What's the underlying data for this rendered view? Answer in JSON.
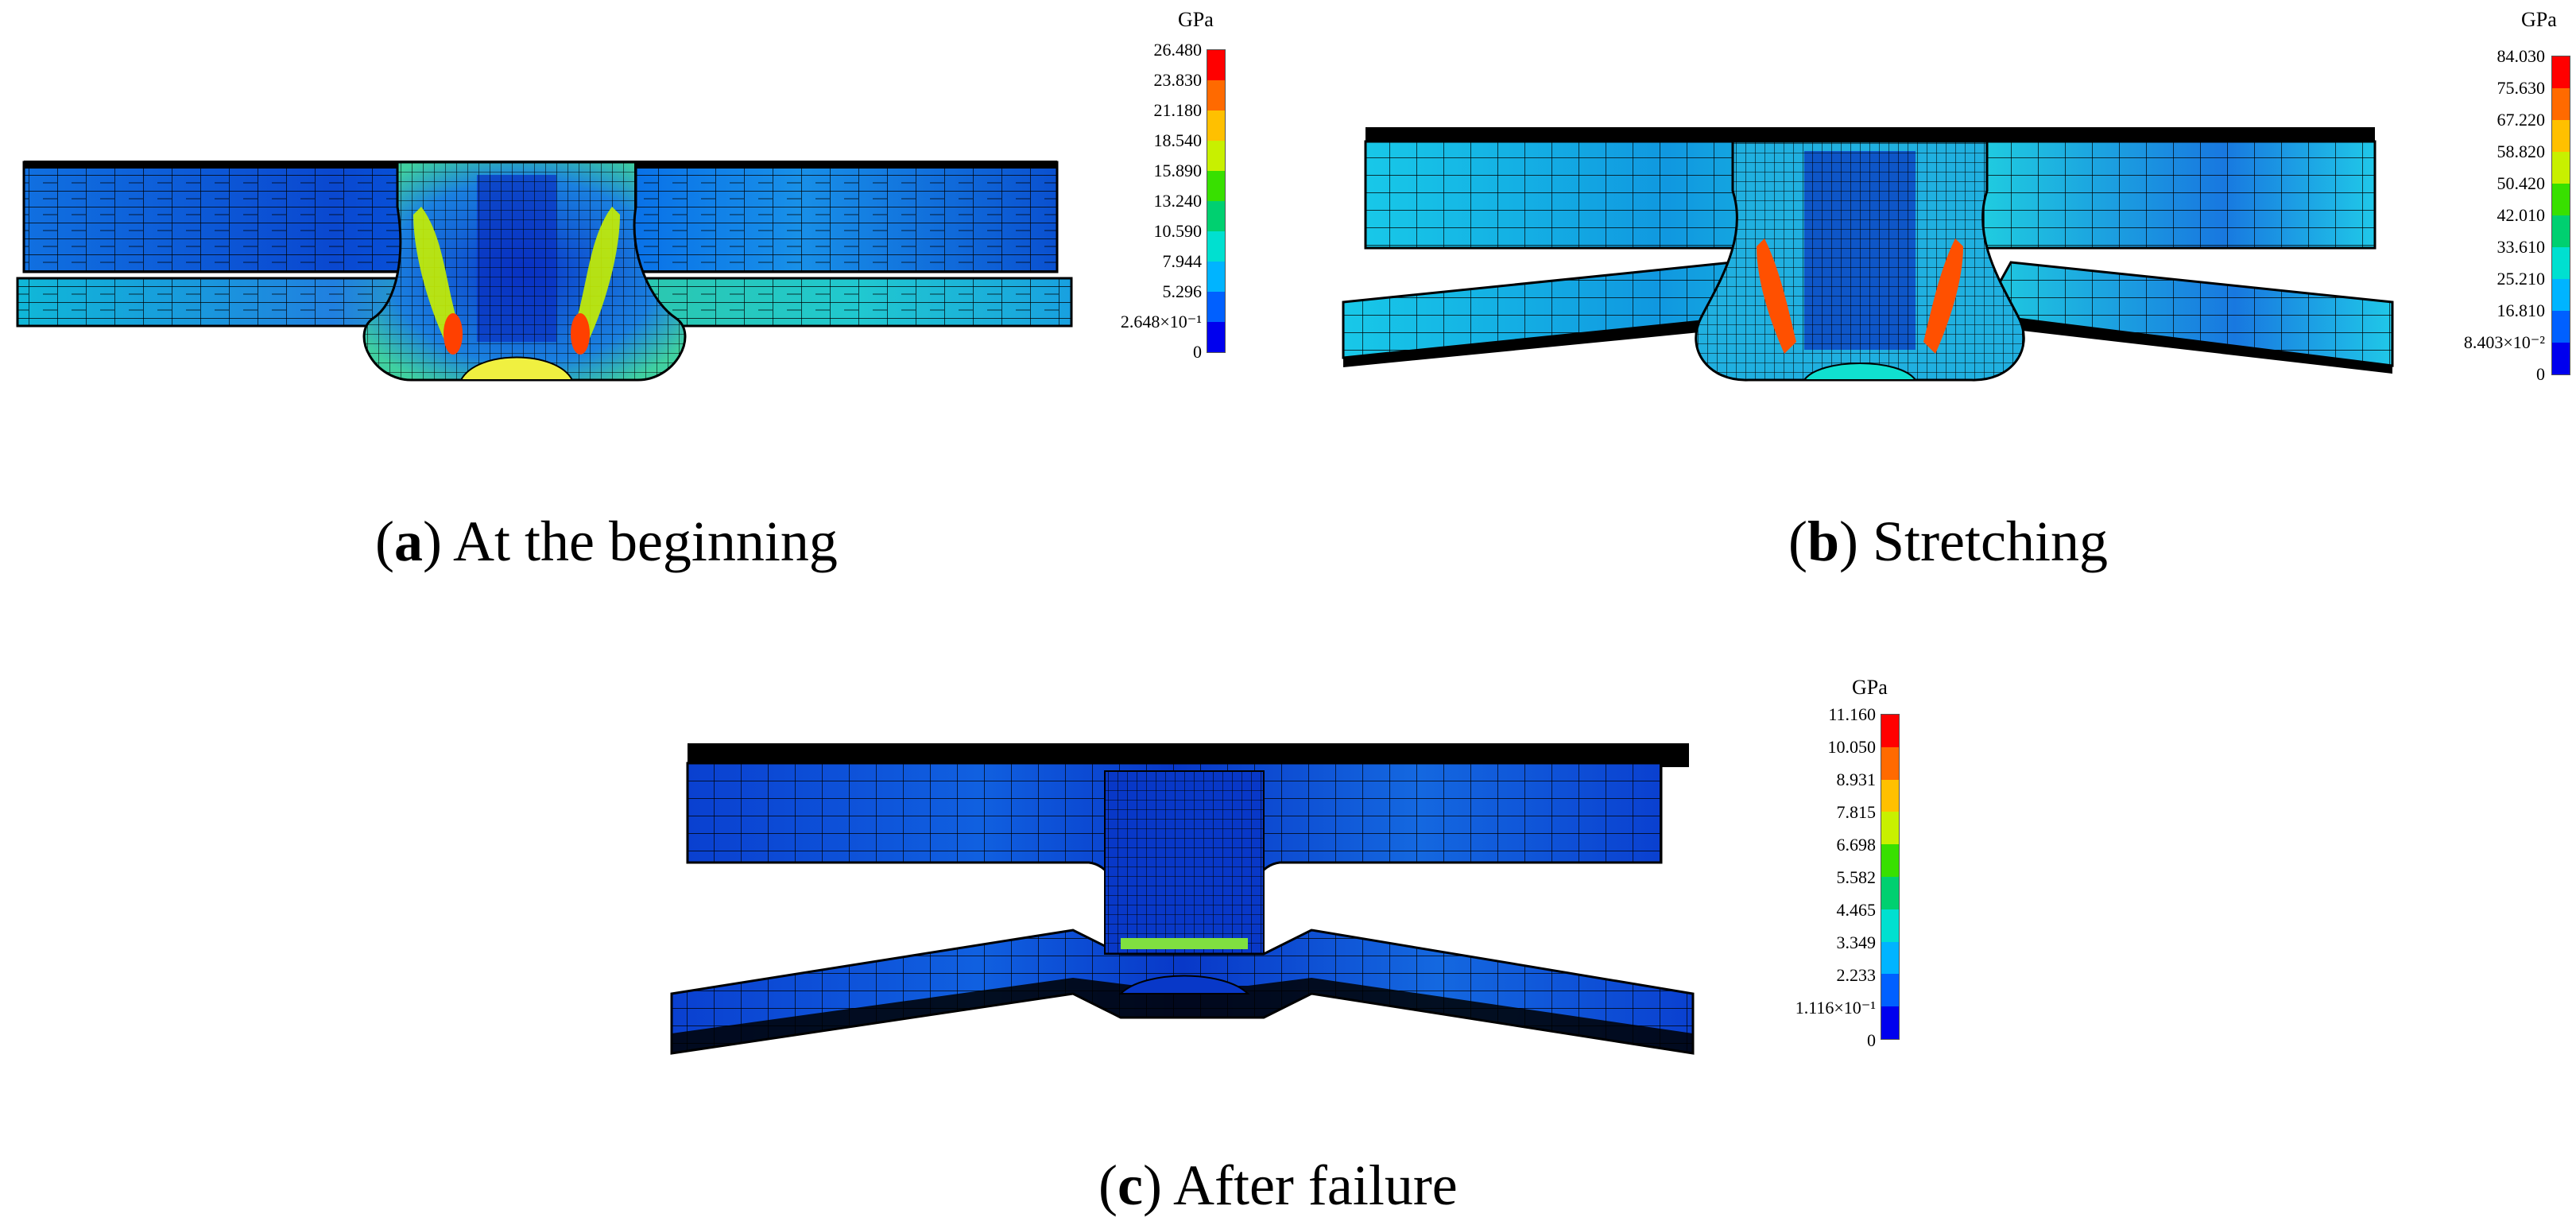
{
  "colorbar_colors": [
    "#ff0000",
    "#ff6a00",
    "#ffc000",
    "#c8f000",
    "#38e000",
    "#00d070",
    "#00e0d0",
    "#00b4ff",
    "#0060ff",
    "#0000ee"
  ],
  "panels": [
    {
      "id": "a",
      "caption_letter": "a",
      "caption_text": "At the beginning",
      "colorbar": {
        "unit": "GPa",
        "ticks": [
          "26.480",
          "23.830",
          "21.180",
          "18.540",
          "15.890",
          "13.240",
          "10.590",
          "7.944",
          "5.296",
          "2.648×10⁻¹",
          "0"
        ]
      }
    },
    {
      "id": "b",
      "caption_letter": "b",
      "caption_text": "Stretching",
      "colorbar": {
        "unit": "GPa",
        "ticks": [
          "84.030",
          "75.630",
          "67.220",
          "58.820",
          "50.420",
          "42.010",
          "33.610",
          "25.210",
          "16.810",
          "8.403×10⁻²",
          "0"
        ]
      }
    },
    {
      "id": "c",
      "caption_letter": "c",
      "caption_text": "After failure",
      "colorbar": {
        "unit": "GPa",
        "ticks": [
          "11.160",
          "10.050",
          "8.931",
          "7.815",
          "6.698",
          "5.582",
          "4.465",
          "3.349",
          "2.233",
          "1.116×10⁻¹",
          "0"
        ]
      }
    }
  ]
}
